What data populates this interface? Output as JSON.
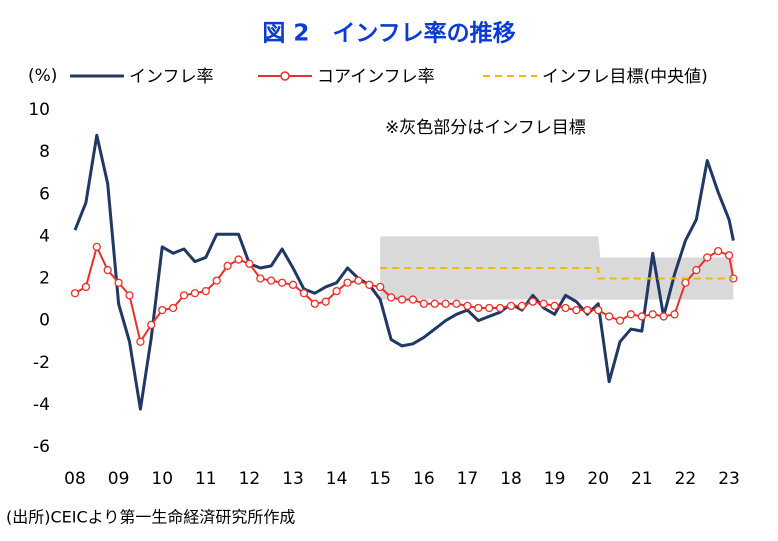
{
  "chart_data": {
    "type": "line",
    "title": "図 2　インフレ率の推移",
    "y_unit": "(%)",
    "annotation": "※灰色部分はインフレ目標",
    "source": "(出所)CEICより第一生命経済研究所作成",
    "xlim": [
      2008,
      2023.1
    ],
    "xticks": [
      {
        "value": 2008,
        "label": "08"
      },
      {
        "value": 2009,
        "label": "09"
      },
      {
        "value": 2010,
        "label": "10"
      },
      {
        "value": 2011,
        "label": "11"
      },
      {
        "value": 2012,
        "label": "12"
      },
      {
        "value": 2013,
        "label": "13"
      },
      {
        "value": 2014,
        "label": "14"
      },
      {
        "value": 2015,
        "label": "15"
      },
      {
        "value": 2016,
        "label": "16"
      },
      {
        "value": 2017,
        "label": "17"
      },
      {
        "value": 2018,
        "label": "18"
      },
      {
        "value": 2019,
        "label": "19"
      },
      {
        "value": 2020,
        "label": "20"
      },
      {
        "value": 2021,
        "label": "21"
      },
      {
        "value": 2022,
        "label": "22"
      },
      {
        "value": 2023,
        "label": "23"
      }
    ],
    "ylim": [
      -6,
      10
    ],
    "yticks": [
      -6,
      -4,
      -2,
      0,
      2,
      4,
      6,
      8,
      10
    ],
    "x": [
      2008,
      2008.25,
      2008.5,
      2008.75,
      2009,
      2009.25,
      2009.5,
      2009.75,
      2010,
      2010.25,
      2010.5,
      2010.75,
      2011,
      2011.25,
      2011.5,
      2011.75,
      2012,
      2012.25,
      2012.5,
      2012.75,
      2013,
      2013.25,
      2013.5,
      2013.75,
      2014,
      2014.25,
      2014.5,
      2014.75,
      2015,
      2015.25,
      2015.5,
      2015.75,
      2016,
      2016.25,
      2016.5,
      2016.75,
      2017,
      2017.25,
      2017.5,
      2017.75,
      2018,
      2018.25,
      2018.5,
      2018.75,
      2019,
      2019.25,
      2019.5,
      2019.75,
      2020,
      2020.25,
      2020.5,
      2020.75,
      2021,
      2021.25,
      2021.5,
      2021.75,
      2022,
      2022.25,
      2022.5,
      2022.75,
      2023,
      2023.1
    ],
    "target_band": {
      "color": "#d9d9d9",
      "x": [
        2015,
        2020,
        2020.05,
        2023.1
      ],
      "lower": [
        1,
        1,
        1,
        1
      ],
      "upper": [
        4,
        4,
        3,
        3
      ]
    },
    "series": [
      {
        "name": "インフレ率",
        "color": "#1f3864",
        "style": "solid",
        "values": [
          4.3,
          5.6,
          8.8,
          6.5,
          0.8,
          -1.0,
          -4.2,
          -0.8,
          3.5,
          3.2,
          3.4,
          2.8,
          3.0,
          4.1,
          4.1,
          4.1,
          2.7,
          2.5,
          2.6,
          3.4,
          2.5,
          1.5,
          1.3,
          1.6,
          1.8,
          2.5,
          2.0,
          1.7,
          1.0,
          -0.9,
          -1.2,
          -1.1,
          -0.8,
          -0.4,
          0.0,
          0.3,
          0.5,
          0.0,
          0.2,
          0.4,
          0.8,
          0.5,
          1.2,
          0.6,
          0.3,
          1.2,
          0.9,
          0.3,
          0.8,
          -2.9,
          -1.0,
          -0.4,
          -0.5,
          3.2,
          0.2,
          2.2,
          3.8,
          4.8,
          7.6,
          6.1,
          4.8,
          3.8
        ]
      },
      {
        "name": "コアインフレ率",
        "color": "#e8302a",
        "style": "marker",
        "values": [
          1.3,
          1.6,
          3.5,
          2.4,
          1.8,
          1.2,
          -1.0,
          -0.2,
          0.5,
          0.6,
          1.2,
          1.3,
          1.4,
          1.9,
          2.6,
          2.9,
          2.7,
          2.0,
          1.9,
          1.8,
          1.7,
          1.3,
          0.8,
          0.9,
          1.4,
          1.8,
          1.9,
          1.7,
          1.6,
          1.1,
          1.0,
          1.0,
          0.8,
          0.8,
          0.8,
          0.8,
          0.7,
          0.6,
          0.6,
          0.6,
          0.7,
          0.7,
          0.9,
          0.8,
          0.7,
          0.6,
          0.5,
          0.5,
          0.5,
          0.2,
          0.0,
          0.3,
          0.2,
          0.3,
          0.2,
          0.3,
          1.8,
          2.4,
          3.0,
          3.3,
          3.1,
          2.0
        ]
      },
      {
        "name": "インフレ目標(中央値)",
        "color": "#f5b800",
        "style": "dashed",
        "x": [
          2015,
          2020,
          2020,
          2023.1
        ],
        "values": [
          2.5,
          2.5,
          2,
          2
        ]
      }
    ]
  }
}
